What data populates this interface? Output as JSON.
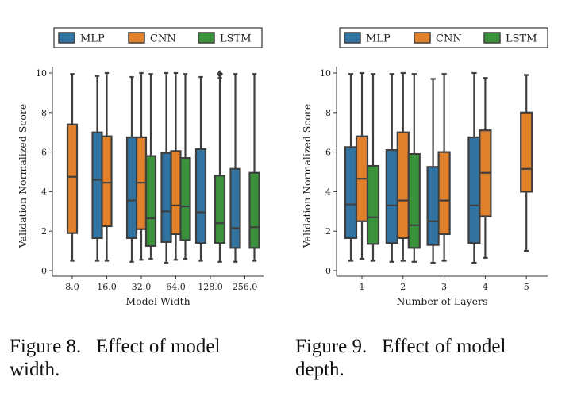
{
  "colors": {
    "MLP": "#3274a1",
    "CNN": "#e1812c",
    "LSTM": "#3a923a",
    "edge": "#3f3f3f"
  },
  "captions": [
    "Figure 8.   Effect of model\nwidth.",
    "Figure 9.   Effect of model\ndepth."
  ],
  "chart_data": [
    {
      "type": "box",
      "xlabel": "Model Width",
      "ylabel": "Validation Normalized Score",
      "ylim": [
        0,
        10
      ],
      "yticks": [
        "0",
        "2",
        "4",
        "6",
        "8",
        "10"
      ],
      "categories": [
        "8.0",
        "16.0",
        "32.0",
        "64.0",
        "128.0",
        "256.0"
      ],
      "legend": {
        "placement": "top",
        "entries": [
          "MLP",
          "CNN",
          "LSTM"
        ]
      },
      "boxes": [
        {
          "category": "8.0",
          "series": "CNN",
          "whislo": 0.5,
          "q1": 1.9,
          "med": 4.75,
          "q3": 7.4,
          "whishi": 9.95
        },
        {
          "category": "16.0",
          "series": "MLP",
          "whislo": 0.5,
          "q1": 1.65,
          "med": 4.6,
          "q3": 7.0,
          "whishi": 9.85
        },
        {
          "category": "16.0",
          "series": "CNN",
          "whislo": 0.5,
          "q1": 2.25,
          "med": 4.45,
          "q3": 6.8,
          "whishi": 10.0
        },
        {
          "category": "32.0",
          "series": "MLP",
          "whislo": 0.45,
          "q1": 1.65,
          "med": 3.55,
          "q3": 6.75,
          "whishi": 9.8
        },
        {
          "category": "32.0",
          "series": "CNN",
          "whislo": 0.55,
          "q1": 2.1,
          "med": 4.45,
          "q3": 6.75,
          "whishi": 10.0
        },
        {
          "category": "32.0",
          "series": "LSTM",
          "whislo": 0.6,
          "q1": 1.25,
          "med": 2.65,
          "q3": 5.8,
          "whishi": 9.95
        },
        {
          "category": "64.0",
          "series": "MLP",
          "whislo": 0.4,
          "q1": 1.45,
          "med": 3.0,
          "q3": 5.95,
          "whishi": 10.0
        },
        {
          "category": "64.0",
          "series": "CNN",
          "whislo": 0.55,
          "q1": 1.85,
          "med": 3.3,
          "q3": 6.05,
          "whishi": 10.0
        },
        {
          "category": "64.0",
          "series": "LSTM",
          "whislo": 0.6,
          "q1": 1.55,
          "med": 3.25,
          "q3": 5.7,
          "whishi": 9.95
        },
        {
          "category": "128.0",
          "series": "MLP",
          "whislo": 0.5,
          "q1": 1.4,
          "med": 2.95,
          "q3": 6.15,
          "whishi": 9.8
        },
        {
          "category": "128.0",
          "series": "LSTM",
          "whislo": 0.45,
          "q1": 1.4,
          "med": 2.4,
          "q3": 4.8,
          "whishi": 9.75,
          "outliers": [
            9.95
          ]
        },
        {
          "category": "256.0",
          "series": "MLP",
          "whislo": 0.45,
          "q1": 1.15,
          "med": 2.15,
          "q3": 5.15,
          "whishi": 9.95
        },
        {
          "category": "256.0",
          "series": "LSTM",
          "whislo": 0.5,
          "q1": 1.15,
          "med": 2.2,
          "q3": 4.95,
          "whishi": 9.95
        }
      ]
    },
    {
      "type": "box",
      "xlabel": "Number of Layers",
      "ylabel": "Validation Normalized Score",
      "ylim": [
        0,
        10
      ],
      "yticks": [
        "0",
        "2",
        "4",
        "6",
        "8",
        "10"
      ],
      "categories": [
        "1",
        "2",
        "3",
        "4",
        "5"
      ],
      "legend": {
        "placement": "top",
        "entries": [
          "MLP",
          "CNN",
          "LSTM"
        ]
      },
      "boxes": [
        {
          "category": "1",
          "series": "MLP",
          "whislo": 0.5,
          "q1": 1.65,
          "med": 3.35,
          "q3": 6.25,
          "whishi": 9.95
        },
        {
          "category": "1",
          "series": "CNN",
          "whislo": 0.6,
          "q1": 2.5,
          "med": 4.65,
          "q3": 6.8,
          "whishi": 10.0
        },
        {
          "category": "1",
          "series": "LSTM",
          "whislo": 0.5,
          "q1": 1.35,
          "med": 2.7,
          "q3": 5.3,
          "whishi": 9.95
        },
        {
          "category": "2",
          "series": "MLP",
          "whislo": 0.45,
          "q1": 1.4,
          "med": 3.3,
          "q3": 6.1,
          "whishi": 9.95
        },
        {
          "category": "2",
          "series": "CNN",
          "whislo": 0.5,
          "q1": 1.65,
          "med": 3.55,
          "q3": 7.0,
          "whishi": 10.0
        },
        {
          "category": "2",
          "series": "LSTM",
          "whislo": 0.45,
          "q1": 1.15,
          "med": 2.3,
          "q3": 5.9,
          "whishi": 9.95
        },
        {
          "category": "3",
          "series": "MLP",
          "whislo": 0.4,
          "q1": 1.3,
          "med": 2.5,
          "q3": 5.25,
          "whishi": 9.7
        },
        {
          "category": "3",
          "series": "CNN",
          "whislo": 0.5,
          "q1": 1.85,
          "med": 3.55,
          "q3": 6.0,
          "whishi": 9.95
        },
        {
          "category": "4",
          "series": "MLP",
          "whislo": 0.4,
          "q1": 1.4,
          "med": 3.3,
          "q3": 6.75,
          "whishi": 10.0
        },
        {
          "category": "4",
          "series": "CNN",
          "whislo": 0.65,
          "q1": 2.75,
          "med": 4.95,
          "q3": 7.1,
          "whishi": 9.75
        },
        {
          "category": "5",
          "series": "CNN",
          "whislo": 1.0,
          "q1": 4.0,
          "med": 5.15,
          "q3": 8.0,
          "whishi": 9.9
        }
      ]
    }
  ]
}
